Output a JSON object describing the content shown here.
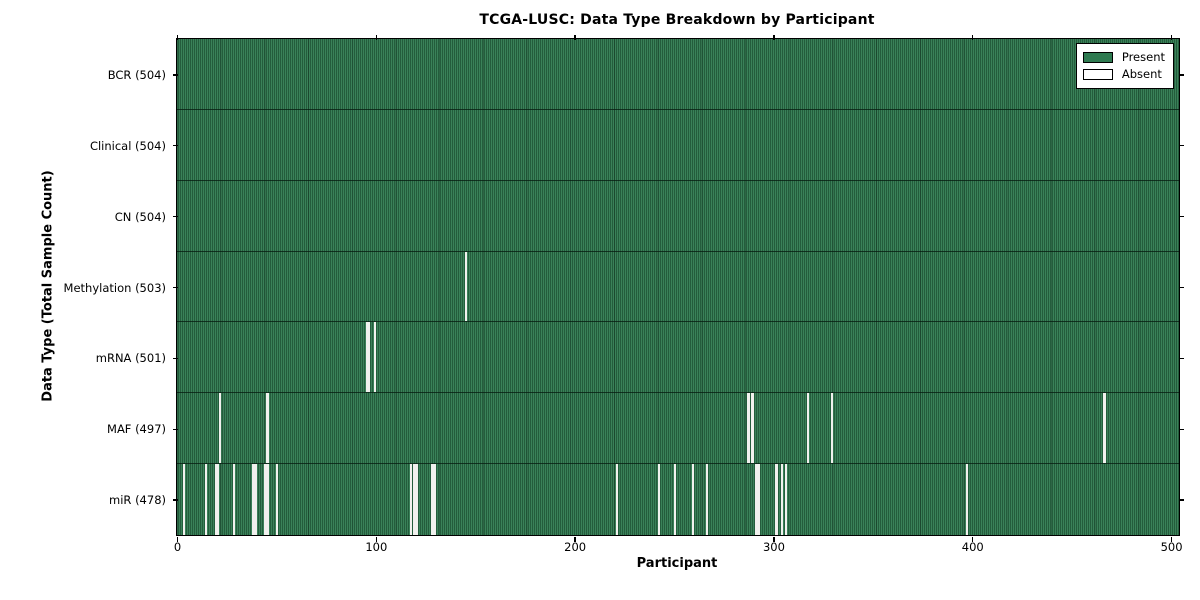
{
  "title": "TCGA-LUSC: Data Type Breakdown by Participant",
  "xlabel": "Participant",
  "ylabel": "Data Type (Total Sample Count)",
  "legend": {
    "present_label": "Present",
    "absent_label": "Absent"
  },
  "colors": {
    "present_green": "#2e7a50",
    "present_green_dark": "#245c3c",
    "absent_white": "#ffffff",
    "row_separator": "#0a2315",
    "plot_border": "#000000",
    "background": "#ffffff"
  },
  "chart_data": {
    "type": "heatmap",
    "title": "TCGA-LUSC: Data Type Breakdown by Participant",
    "xlabel": "Participant",
    "ylabel": "Data Type (Total Sample Count)",
    "n_participants": 504,
    "x_range": [
      0,
      504
    ],
    "x_ticks": [
      0,
      100,
      200,
      300,
      400,
      500
    ],
    "grid": false,
    "legend_position": "upper right",
    "legend": [
      {
        "label": "Present",
        "color": "#2e7a50"
      },
      {
        "label": "Absent",
        "color": "#ffffff"
      }
    ],
    "rows": [
      {
        "label": "BCR (504)",
        "data_type": "BCR",
        "total_samples": 504,
        "absent_participants": []
      },
      {
        "label": "Clinical (504)",
        "data_type": "Clinical",
        "total_samples": 504,
        "absent_participants": []
      },
      {
        "label": "CN (504)",
        "data_type": "CN",
        "total_samples": 504,
        "absent_participants": []
      },
      {
        "label": "Methylation (503)",
        "data_type": "Methylation",
        "total_samples": 503,
        "absent_participants": [
          145
        ]
      },
      {
        "label": "mRNA (501)",
        "data_type": "mRNA",
        "total_samples": 501,
        "absent_participants": [
          95,
          96,
          99
        ]
      },
      {
        "label": "MAF (497)",
        "data_type": "MAF",
        "total_samples": 497,
        "absent_participants": [
          21,
          45,
          287,
          289,
          317,
          329,
          466
        ]
      },
      {
        "label": "miR (478)",
        "data_type": "miR",
        "total_samples": 478,
        "absent_participants": [
          3,
          14,
          19,
          20,
          28,
          38,
          39,
          44,
          45,
          50,
          117,
          119,
          120,
          128,
          129,
          221,
          242,
          250,
          259,
          266,
          291,
          292,
          301,
          304,
          306,
          397
        ]
      }
    ]
  }
}
